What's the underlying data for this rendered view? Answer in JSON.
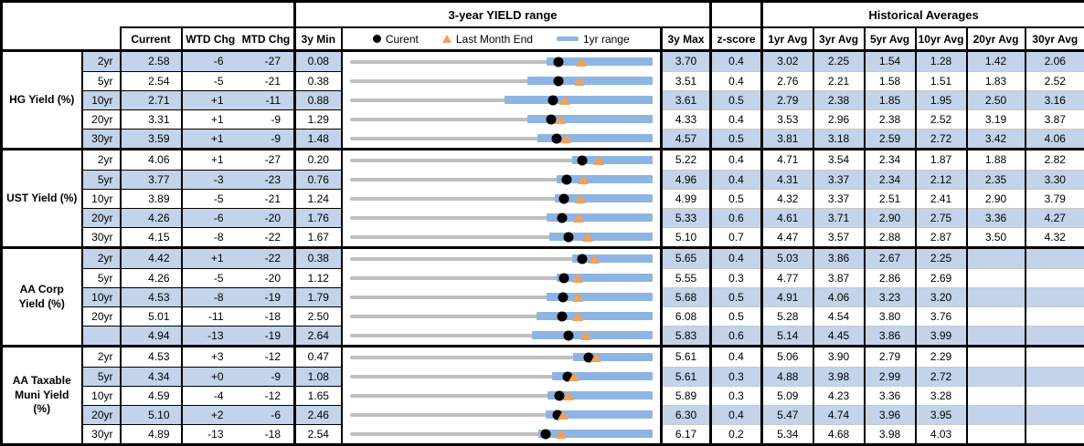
{
  "header": {
    "range_title": "3-year YIELD range",
    "hist_title": "Historical Averages",
    "col_current": "Current",
    "col_wtd": "WTD Chg",
    "col_mtd": "MTD Chg",
    "col_min": "3y Min",
    "col_max": "3y Max",
    "col_z": "z-score",
    "avg_cols": [
      "1yr Avg",
      "3yr Avg",
      "5yr Avg",
      "10yr Avg",
      "20yr Avg",
      "30yr Avg"
    ],
    "legend": {
      "current_label": "Curent",
      "last_month_label": "Last Month End",
      "range_label": "1yr range"
    }
  },
  "colors": {
    "row_shade": "#C2D3EA",
    "bar_blue": "#8EB4E3",
    "track_gray": "#BFBFBF",
    "triangle_orange": "#F4A055",
    "dot_black": "#000000"
  },
  "chart_data": {
    "type": "table",
    "note": "Each row contains an embedded bullet chart: gray track = 3y min-max range, blue bar = 1yr range, black dot = current, orange triangle = last month end.",
    "groups": [
      {
        "label": "HG Yield (%)",
        "rows": [
          {
            "tenor": "2yr",
            "current": "2.58",
            "wtd": "-6",
            "mtd": "-27",
            "min": "0.08",
            "max": "3.70",
            "z": "0.4",
            "avgs": [
              "3.02",
              "2.25",
              "1.54",
              "1.28",
              "1.42",
              "2.06"
            ],
            "bullet": {
              "min": 0.08,
              "max": 3.7,
              "current": 2.58,
              "last_month_end": 2.85,
              "yr1_low": 2.43,
              "yr1_high": 3.7
            }
          },
          {
            "tenor": "5yr",
            "current": "2.54",
            "wtd": "-5",
            "mtd": "-21",
            "min": "0.38",
            "max": "3.51",
            "z": "0.4",
            "avgs": [
              "2.76",
              "2.21",
              "1.58",
              "1.51",
              "1.83",
              "2.52"
            ],
            "bullet": {
              "min": 0.38,
              "max": 3.51,
              "current": 2.54,
              "last_month_end": 2.75,
              "yr1_low": 2.22,
              "yr1_high": 3.51
            }
          },
          {
            "tenor": "10yr",
            "current": "2.71",
            "wtd": "+1",
            "mtd": "-11",
            "min": "0.88",
            "max": "3.61",
            "z": "0.5",
            "avgs": [
              "2.79",
              "2.38",
              "1.85",
              "1.95",
              "2.50",
              "3.16"
            ],
            "bullet": {
              "min": 0.88,
              "max": 3.61,
              "current": 2.71,
              "last_month_end": 2.82,
              "yr1_low": 2.28,
              "yr1_high": 3.61
            }
          },
          {
            "tenor": "20yr",
            "current": "3.31",
            "wtd": "+1",
            "mtd": "-9",
            "min": "1.29",
            "max": "4.33",
            "z": "0.4",
            "avgs": [
              "3.53",
              "2.96",
              "2.38",
              "2.52",
              "3.19",
              "3.87"
            ],
            "bullet": {
              "min": 1.29,
              "max": 4.33,
              "current": 3.31,
              "last_month_end": 3.4,
              "yr1_low": 3.07,
              "yr1_high": 4.33
            }
          },
          {
            "tenor": "30yr",
            "current": "3.59",
            "wtd": "+1",
            "mtd": "-9",
            "min": "1.48",
            "max": "4.57",
            "z": "0.5",
            "avgs": [
              "3.81",
              "3.18",
              "2.59",
              "2.72",
              "3.42",
              "4.06"
            ],
            "bullet": {
              "min": 1.48,
              "max": 4.57,
              "current": 3.59,
              "last_month_end": 3.68,
              "yr1_low": 3.4,
              "yr1_high": 4.57
            }
          }
        ]
      },
      {
        "label": "UST Yield (%)",
        "rows": [
          {
            "tenor": "2yr",
            "current": "4.06",
            "wtd": "+1",
            "mtd": "-27",
            "min": "0.20",
            "max": "5.22",
            "z": "0.4",
            "avgs": [
              "4.71",
              "3.54",
              "2.34",
              "1.87",
              "1.88",
              "2.82"
            ],
            "bullet": {
              "min": 0.2,
              "max": 5.22,
              "current": 4.06,
              "last_month_end": 4.33,
              "yr1_low": 3.89,
              "yr1_high": 5.22
            }
          },
          {
            "tenor": "5yr",
            "current": "3.77",
            "wtd": "-3",
            "mtd": "-23",
            "min": "0.76",
            "max": "4.96",
            "z": "0.4",
            "avgs": [
              "4.31",
              "3.37",
              "2.34",
              "2.12",
              "2.35",
              "3.30"
            ],
            "bullet": {
              "min": 0.76,
              "max": 4.96,
              "current": 3.77,
              "last_month_end": 4.0,
              "yr1_low": 3.63,
              "yr1_high": 4.96
            }
          },
          {
            "tenor": "10yr",
            "current": "3.89",
            "wtd": "-5",
            "mtd": "-21",
            "min": "1.24",
            "max": "4.99",
            "z": "0.5",
            "avgs": [
              "4.32",
              "3.37",
              "2.51",
              "2.41",
              "2.90",
              "3.79"
            ],
            "bullet": {
              "min": 1.24,
              "max": 4.99,
              "current": 3.89,
              "last_month_end": 4.1,
              "yr1_low": 3.78,
              "yr1_high": 4.99
            }
          },
          {
            "tenor": "20yr",
            "current": "4.26",
            "wtd": "-6",
            "mtd": "-20",
            "min": "1.76",
            "max": "5.33",
            "z": "0.6",
            "avgs": [
              "4.61",
              "3.71",
              "2.90",
              "2.75",
              "3.36",
              "4.27"
            ],
            "bullet": {
              "min": 1.76,
              "max": 5.33,
              "current": 4.26,
              "last_month_end": 4.46,
              "yr1_low": 4.08,
              "yr1_high": 5.33
            }
          },
          {
            "tenor": "30yr",
            "current": "4.15",
            "wtd": "-8",
            "mtd": "-22",
            "min": "1.67",
            "max": "5.10",
            "z": "0.7",
            "avgs": [
              "4.47",
              "3.57",
              "2.88",
              "2.87",
              "3.50",
              "4.32"
            ],
            "bullet": {
              "min": 1.67,
              "max": 5.1,
              "current": 4.15,
              "last_month_end": 4.37,
              "yr1_low": 3.93,
              "yr1_high": 5.1
            }
          }
        ]
      },
      {
        "label": "AA Corp Yield (%)",
        "rows": [
          {
            "tenor": "2yr",
            "current": "4.42",
            "wtd": "+1",
            "mtd": "-22",
            "min": "0.38",
            "max": "5.65",
            "z": "0.4",
            "avgs": [
              "5.03",
              "3.86",
              "2.67",
              "2.25",
              "",
              ""
            ],
            "bullet": {
              "min": 0.38,
              "max": 5.65,
              "current": 4.42,
              "last_month_end": 4.64,
              "yr1_low": 4.25,
              "yr1_high": 5.65
            }
          },
          {
            "tenor": "5yr",
            "current": "4.26",
            "wtd": "-5",
            "mtd": "-20",
            "min": "1.12",
            "max": "5.55",
            "z": "0.3",
            "avgs": [
              "4.77",
              "3.87",
              "2.86",
              "2.69",
              "",
              ""
            ],
            "bullet": {
              "min": 1.12,
              "max": 5.55,
              "current": 4.26,
              "last_month_end": 4.46,
              "yr1_low": 4.15,
              "yr1_high": 5.55
            }
          },
          {
            "tenor": "10yr",
            "current": "4.53",
            "wtd": "-8",
            "mtd": "-19",
            "min": "1.79",
            "max": "5.68",
            "z": "0.5",
            "avgs": [
              "4.91",
              "4.06",
              "3.23",
              "3.20",
              "",
              ""
            ],
            "bullet": {
              "min": 1.79,
              "max": 5.68,
              "current": 4.53,
              "last_month_end": 4.72,
              "yr1_low": 4.32,
              "yr1_high": 5.68
            }
          },
          {
            "tenor": "20yr",
            "current": "5.01",
            "wtd": "-11",
            "mtd": "-18",
            "min": "2.50",
            "max": "6.08",
            "z": "0.5",
            "avgs": [
              "5.28",
              "4.54",
              "3.80",
              "3.76",
              "",
              ""
            ],
            "bullet": {
              "min": 2.5,
              "max": 6.08,
              "current": 5.01,
              "last_month_end": 5.19,
              "yr1_low": 4.71,
              "yr1_high": 6.08
            }
          },
          {
            "tenor": "",
            "current": "4.94",
            "wtd": "-13",
            "mtd": "-19",
            "min": "2.64",
            "max": "5.83",
            "z": "0.6",
            "avgs": [
              "5.14",
              "4.45",
              "3.86",
              "3.99",
              "",
              ""
            ],
            "bullet": {
              "min": 2.64,
              "max": 5.83,
              "current": 4.94,
              "last_month_end": 5.13,
              "yr1_low": 4.56,
              "yr1_high": 5.83
            }
          }
        ]
      },
      {
        "label": "AA Taxable Muni Yield (%)",
        "rows": [
          {
            "tenor": "2yr",
            "current": "4.53",
            "wtd": "+3",
            "mtd": "-12",
            "min": "0.47",
            "max": "5.61",
            "z": "0.4",
            "avgs": [
              "5.06",
              "3.90",
              "2.79",
              "2.29",
              "",
              ""
            ],
            "bullet": {
              "min": 0.47,
              "max": 5.61,
              "current": 4.53,
              "last_month_end": 4.65,
              "yr1_low": 4.26,
              "yr1_high": 5.61
            }
          },
          {
            "tenor": "5yr",
            "current": "4.34",
            "wtd": "+0",
            "mtd": "-9",
            "min": "1.08",
            "max": "5.61",
            "z": "0.3",
            "avgs": [
              "4.88",
              "3.98",
              "2.99",
              "2.72",
              "",
              ""
            ],
            "bullet": {
              "min": 1.08,
              "max": 5.61,
              "current": 4.34,
              "last_month_end": 4.43,
              "yr1_low": 4.1,
              "yr1_high": 5.61
            }
          },
          {
            "tenor": "10yr",
            "current": "4.59",
            "wtd": "-4",
            "mtd": "-12",
            "min": "1.65",
            "max": "5.89",
            "z": "0.3",
            "avgs": [
              "5.09",
              "4.23",
              "3.36",
              "3.28",
              "",
              ""
            ],
            "bullet": {
              "min": 1.65,
              "max": 5.89,
              "current": 4.59,
              "last_month_end": 4.71,
              "yr1_low": 4.42,
              "yr1_high": 5.89
            }
          },
          {
            "tenor": "20yr",
            "current": "5.10",
            "wtd": "+2",
            "mtd": "-6",
            "min": "2.46",
            "max": "6.30",
            "z": "0.4",
            "avgs": [
              "5.47",
              "4.74",
              "3.96",
              "3.95",
              "",
              ""
            ],
            "bullet": {
              "min": 2.46,
              "max": 6.3,
              "current": 5.1,
              "last_month_end": 5.16,
              "yr1_low": 4.94,
              "yr1_high": 6.3
            }
          },
          {
            "tenor": "30yr",
            "current": "4.89",
            "wtd": "-13",
            "mtd": "-18",
            "min": "2.54",
            "max": "6.17",
            "z": "0.2",
            "avgs": [
              "5.34",
              "4.68",
              "3.98",
              "4.03",
              "",
              ""
            ],
            "bullet": {
              "min": 2.54,
              "max": 6.17,
              "current": 4.89,
              "last_month_end": 5.07,
              "yr1_low": 4.8,
              "yr1_high": 6.17
            }
          }
        ]
      }
    ]
  }
}
